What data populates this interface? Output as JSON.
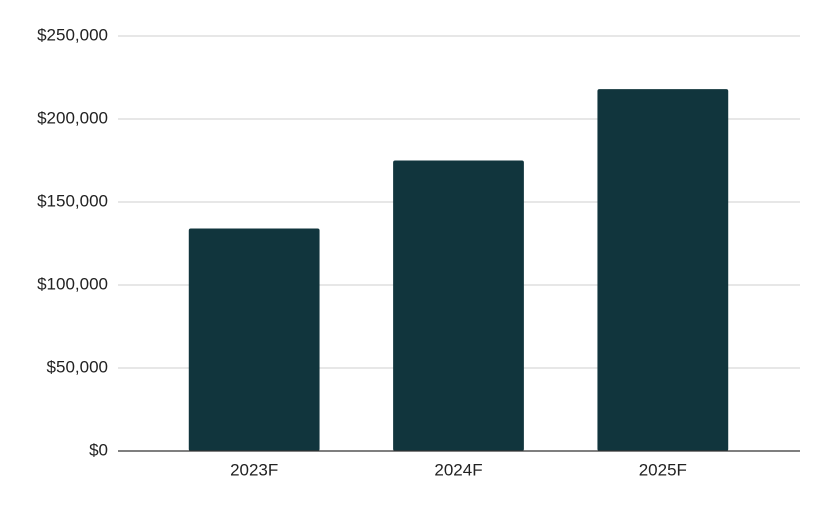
{
  "chart_data": {
    "type": "bar",
    "categories": [
      "2023F",
      "2024F",
      "2025F"
    ],
    "values": [
      134000,
      175000,
      218000
    ],
    "color": "#11353d",
    "ylim": [
      0,
      250000
    ],
    "yticks": [
      {
        "value": 0,
        "label": "$0"
      },
      {
        "value": 50000,
        "label": "$50,000"
      },
      {
        "value": 100000,
        "label": "$100,000"
      },
      {
        "value": 150000,
        "label": "$150,000"
      },
      {
        "value": 200000,
        "label": "$200,000"
      },
      {
        "value": 250000,
        "label": "$250,000"
      }
    ],
    "grid": true
  }
}
